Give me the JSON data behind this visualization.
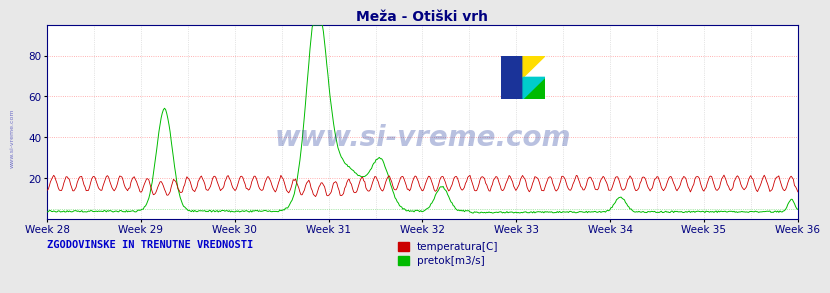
{
  "title": "Meža - Otiški vrh",
  "title_color": "#000080",
  "title_fontsize": 10,
  "bg_color": "#e8e8e8",
  "plot_bg_color": "#ffffff",
  "ylim": [
    0,
    95
  ],
  "yticks": [
    20,
    40,
    60,
    80
  ],
  "x_weeks": [
    28,
    29,
    30,
    31,
    32,
    33,
    34,
    35,
    36
  ],
  "n_weeks": 8,
  "temp_color": "#cc0000",
  "flow_color": "#00bb00",
  "watermark_text": "www.si-vreme.com",
  "watermark_color": "#1a3399",
  "watermark_alpha": 0.3,
  "watermark_fontsize": 20,
  "legend_label_temp": "temperatura[C]",
  "legend_label_flow": "pretok[m3/s]",
  "footer_text": "ZGODOVINSKE IN TRENUTNE VREDNOSTI",
  "footer_color": "#0000cc",
  "grid_color_h": "#ff9999",
  "grid_color_v": "#cccccc",
  "axis_color": "#000080",
  "tick_color": "#000080",
  "side_label": "www.si-vreme.com",
  "side_label_color": "#0000aa"
}
